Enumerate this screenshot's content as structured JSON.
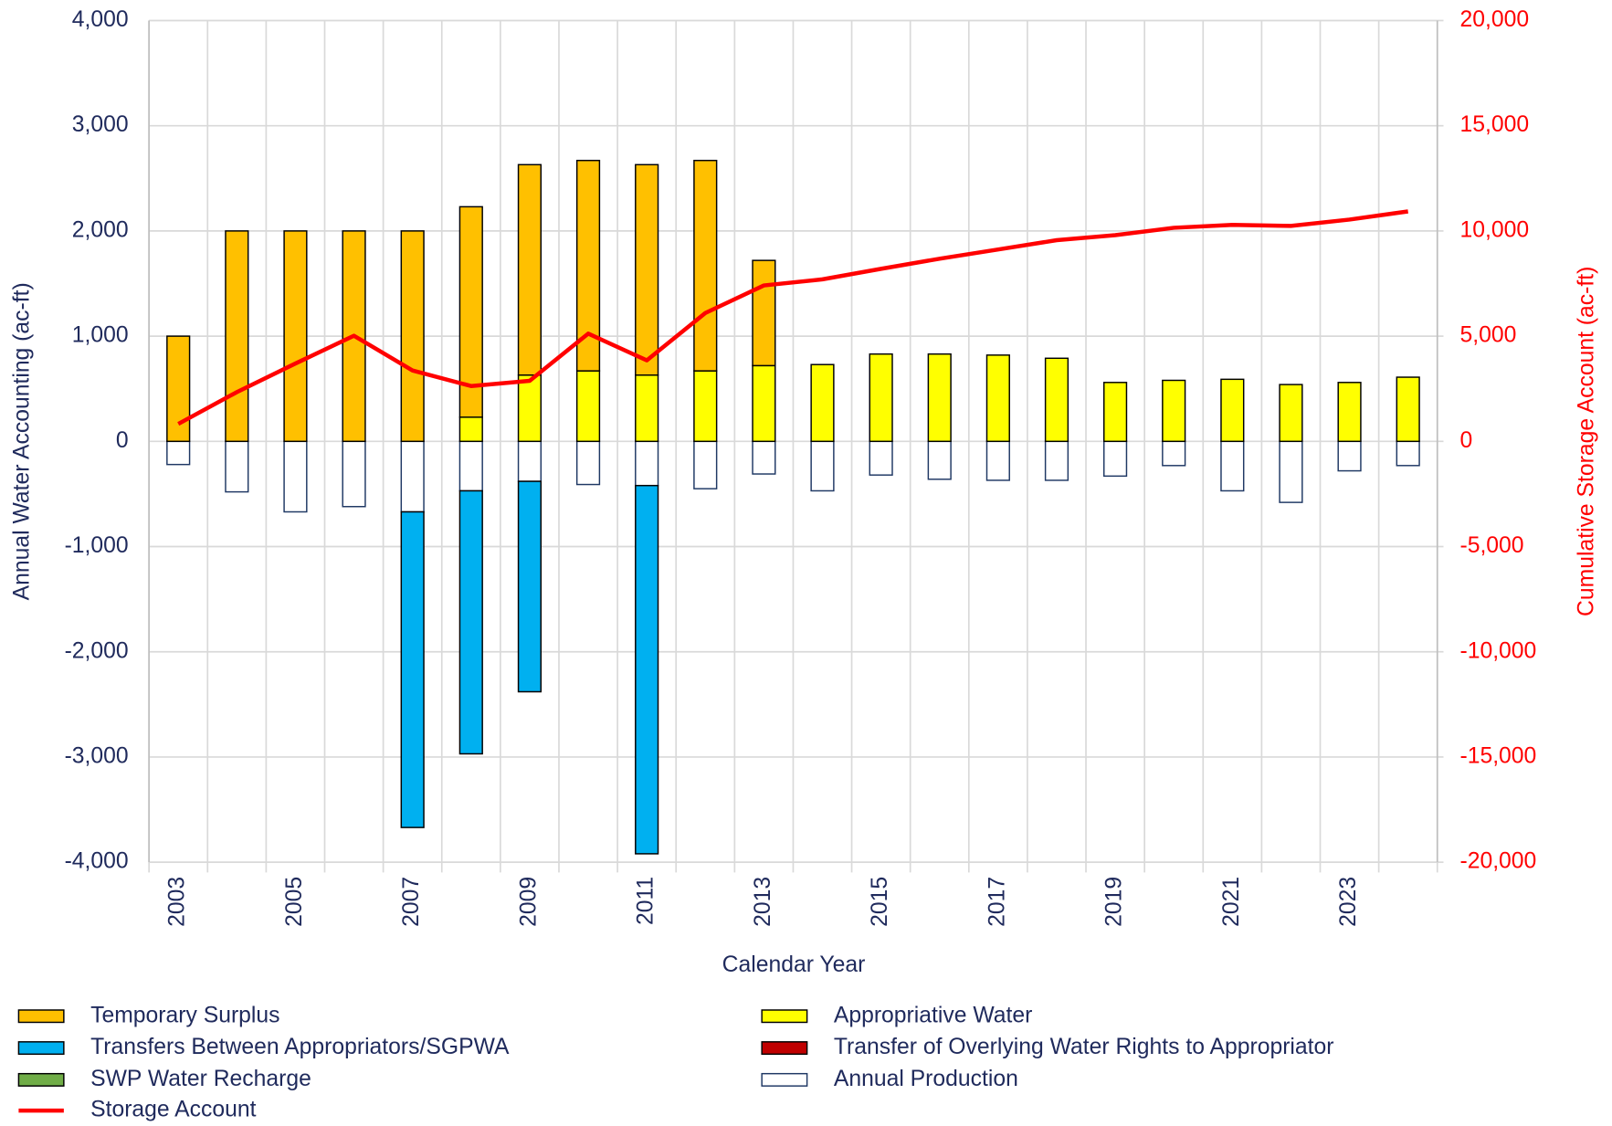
{
  "chart_data": {
    "type": "bar",
    "xlabel": "Calendar Year",
    "ylabel": "Annual Water Accounting (ac-ft)",
    "y2label": "Cumulative Storage Account (ac-ft)",
    "categories": [
      "2003",
      null,
      "2005",
      null,
      "2007",
      null,
      "2009",
      null,
      "2011",
      null,
      "2013",
      null,
      "2015",
      null,
      "2017",
      null,
      "2019",
      null,
      "2021",
      null,
      "2023",
      null
    ],
    "stacked": true,
    "grid": true,
    "legend": "bottom",
    "series": [
      {
        "name": "Temporary Surplus",
        "type": "bar",
        "color": "#FFC000",
        "values": [
          1000,
          2000,
          2000,
          2000,
          2000,
          2000,
          2000,
          2000,
          2000,
          2000,
          1000,
          0,
          0,
          0,
          0,
          0,
          0,
          0,
          0,
          0,
          0,
          0
        ]
      },
      {
        "name": "Appropriative Water",
        "type": "bar",
        "color": "#FFFF00",
        "values": [
          0,
          0,
          0,
          0,
          0,
          230,
          630,
          670,
          630,
          670,
          720,
          730,
          830,
          830,
          820,
          790,
          560,
          580,
          590,
          540,
          560,
          610
        ]
      },
      {
        "name": "Transfers Between Appropriators/SGPWA",
        "type": "bar",
        "color": "#00B0F0",
        "values": [
          0,
          0,
          0,
          0,
          -3000,
          -2500,
          -2000,
          0,
          -3500,
          0,
          0,
          0,
          0,
          0,
          0,
          0,
          0,
          0,
          0,
          0,
          0,
          0
        ]
      },
      {
        "name": "Transfer of Overlying Water Rights to Appropriator",
        "type": "bar",
        "color": "#C00000",
        "values": [
          0,
          0,
          0,
          0,
          0,
          0,
          0,
          0,
          0,
          0,
          0,
          0,
          0,
          0,
          0,
          0,
          0,
          0,
          0,
          0,
          0,
          0
        ]
      },
      {
        "name": "SWP Water Recharge",
        "type": "bar",
        "color": "#70AD47",
        "values": [
          0,
          0,
          0,
          0,
          0,
          0,
          0,
          0,
          0,
          0,
          0,
          0,
          0,
          0,
          0,
          0,
          0,
          0,
          0,
          0,
          0,
          0
        ]
      },
      {
        "name": "Annual Production",
        "type": "bar",
        "color": "#FFFFFF",
        "values": [
          -220,
          -480,
          -670,
          -620,
          -670,
          -470,
          -380,
          -410,
          -420,
          -450,
          -310,
          -470,
          -320,
          -360,
          -370,
          -370,
          -330,
          -230,
          -470,
          -580,
          -280,
          -230
        ]
      },
      {
        "name": "Storage Account",
        "type": "line",
        "axis": "y2",
        "color": "#FF0000",
        "values": [
          830,
          2340,
          3700,
          5020,
          3370,
          2630,
          2880,
          5120,
          3850,
          6100,
          7410,
          7700,
          8200,
          8680,
          9120,
          9560,
          9800,
          10150,
          10290,
          10240,
          10540,
          10930
        ]
      }
    ],
    "ylim": [
      -4000,
      4000
    ],
    "yticks": [
      {
        "value": -4000,
        "label": "-4,000"
      },
      {
        "value": -3000,
        "label": "-3,000"
      },
      {
        "value": -2000,
        "label": "-2,000"
      },
      {
        "value": -1000,
        "label": "-1,000"
      },
      0,
      {
        "value": 1000,
        "label": "1,000"
      },
      {
        "value": 2000,
        "label": "2,000"
      },
      {
        "value": 3000,
        "label": "3,000"
      },
      {
        "value": 4000,
        "label": "4,000"
      }
    ],
    "y2lim": [
      -20000,
      20000
    ],
    "y2ticks": [
      {
        "value": -20000,
        "label": "-20,000"
      },
      {
        "value": -15000,
        "label": "-15,000"
      },
      {
        "value": -10000,
        "label": "-10,000"
      },
      {
        "value": -5000,
        "label": "-5,000"
      },
      0,
      {
        "value": 5000,
        "label": "5,000"
      },
      {
        "value": 10000,
        "label": "10,000"
      },
      {
        "value": 15000,
        "label": "15,000"
      },
      {
        "value": 20000,
        "label": "20,000"
      }
    ]
  }
}
